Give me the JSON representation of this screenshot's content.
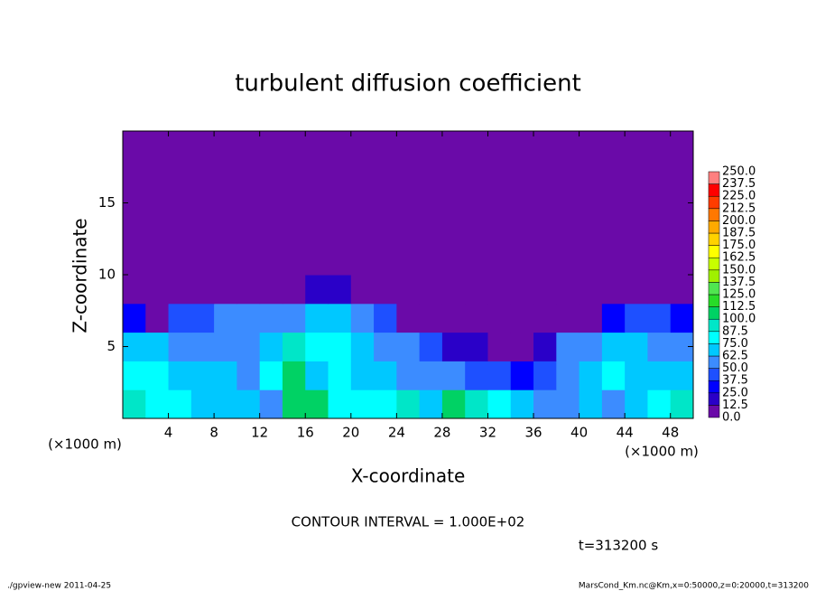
{
  "chart_data": {
    "type": "heatmap",
    "title": "turbulent diffusion coefficient",
    "xlabel": "X-coordinate",
    "ylabel": "Z-coordinate",
    "xlabel_unit": "(×1000 m)",
    "ylabel_unit": "(×1000 m)",
    "annotation": "CONTOUR INTERVAL = 1.000E+02",
    "time_label": "t=313200 s",
    "footer_left": "./gpview-new  2011-04-25",
    "footer_right": "MarsCond_Km.nc@Km,x=0:50000,z=0:20000,t=313200",
    "xlim": [
      0,
      50
    ],
    "xticks": [
      4,
      8,
      12,
      16,
      20,
      24,
      28,
      32,
      36,
      40,
      44,
      48
    ],
    "ylim": [
      0,
      20
    ],
    "yticks": [
      5,
      10,
      15
    ],
    "x_edges": [
      0,
      2,
      4,
      6,
      8,
      10,
      12,
      14,
      16,
      18,
      20,
      22,
      24,
      26,
      28,
      30,
      32,
      34,
      36,
      38,
      40,
      42,
      44,
      46,
      48,
      50
    ],
    "y_edges": [
      0,
      2,
      4,
      6,
      8,
      10,
      20
    ],
    "values": [
      [
        90,
        80,
        75,
        70,
        70,
        65,
        60,
        100,
        110,
        85,
        75,
        80,
        90,
        70,
        105,
        90,
        80,
        70,
        60,
        55,
        70,
        60,
        70,
        75,
        95
      ],
      [
        80,
        75,
        70,
        65,
        70,
        60,
        80,
        110,
        70,
        75,
        65,
        70,
        60,
        55,
        60,
        45,
        40,
        35,
        40,
        60,
        70,
        75,
        65,
        70,
        70
      ],
      [
        70,
        65,
        55,
        50,
        60,
        55,
        70,
        90,
        75,
        80,
        70,
        60,
        55,
        40,
        20,
        15,
        10,
        5,
        15,
        55,
        60,
        70,
        65,
        60,
        55
      ],
      [
        30,
        10,
        40,
        45,
        50,
        55,
        60,
        55,
        70,
        65,
        55,
        40,
        5,
        0,
        0,
        0,
        0,
        0,
        0,
        0,
        10,
        30,
        45,
        40,
        30
      ],
      [
        0,
        0,
        0,
        0,
        0,
        0,
        0,
        10,
        20,
        15,
        0,
        0,
        0,
        0,
        0,
        5,
        0,
        0,
        0,
        0,
        0,
        0,
        0,
        0,
        0
      ],
      [
        0,
        0,
        0,
        0,
        0,
        0,
        0,
        0,
        0,
        0,
        0,
        0,
        0,
        0,
        0,
        0,
        0,
        0,
        0,
        0,
        0,
        0,
        0,
        0,
        0
      ]
    ],
    "levels": [
      {
        "value": 0,
        "label": "0.0"
      },
      {
        "value": 12.5,
        "label": "12.5"
      },
      {
        "value": 25,
        "label": "25.0"
      },
      {
        "value": 37.5,
        "label": "37.5"
      },
      {
        "value": 50,
        "label": "50.0"
      },
      {
        "value": 62.5,
        "label": "62.5"
      },
      {
        "value": 75,
        "label": "75.0"
      },
      {
        "value": 87.5,
        "label": "87.5"
      },
      {
        "value": 100,
        "label": "100.0"
      },
      {
        "value": 112.5,
        "label": "112.5"
      },
      {
        "value": 125,
        "label": "125.0"
      },
      {
        "value": 137.5,
        "label": "137.5"
      },
      {
        "value": 150,
        "label": "150.0"
      },
      {
        "value": 162.5,
        "label": "162.5"
      },
      {
        "value": 175,
        "label": "175.0"
      },
      {
        "value": 187.5,
        "label": "187.5"
      },
      {
        "value": 200,
        "label": "200.0"
      },
      {
        "value": 212.5,
        "label": "212.5"
      },
      {
        "value": 225,
        "label": "225.0"
      },
      {
        "value": 237.5,
        "label": "237.5"
      },
      {
        "value": 250,
        "label": "250.0"
      }
    ],
    "colors": [
      "#6a0aa8",
      "#2a00c8",
      "#0000ff",
      "#1e50ff",
      "#3c8cff",
      "#00c8ff",
      "#00ffff",
      "#00e6c8",
      "#00d264",
      "#28dc28",
      "#50e650",
      "#a0f000",
      "#c8ff00",
      "#ffff00",
      "#ffd200",
      "#ffaa00",
      "#ff7800",
      "#ff3c00",
      "#ff0000",
      "#ff8080"
    ]
  }
}
